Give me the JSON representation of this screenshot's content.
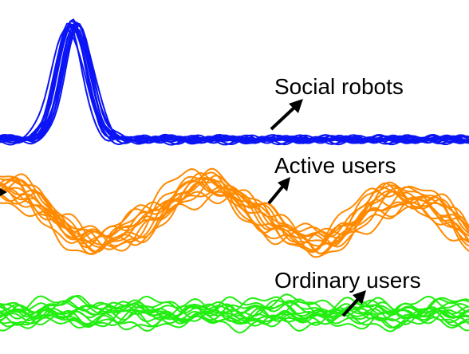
{
  "chart_data": {
    "type": "line",
    "title": "",
    "xlabel": "",
    "ylabel": "",
    "grid": false,
    "legend": "none",
    "groups": [
      {
        "name": "Social robots",
        "color": "#0a14f5",
        "pattern": "single-peak",
        "curve_count": 14
      },
      {
        "name": "Active users",
        "color": "#ff8a00",
        "pattern": "periodic-oscillation",
        "curve_count": 14
      },
      {
        "name": "Ordinary users",
        "color": "#22ee10",
        "pattern": "low-amplitude-noise",
        "curve_count": 14
      }
    ]
  }
}
